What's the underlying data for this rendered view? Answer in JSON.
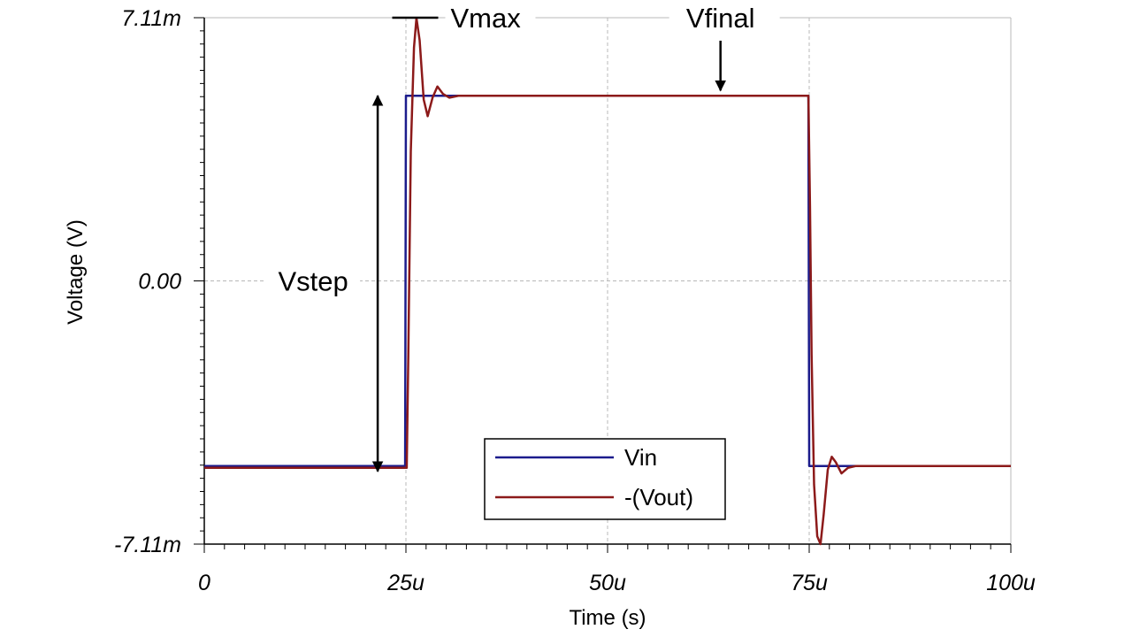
{
  "chart_data": {
    "type": "line",
    "xlabel": "Time (s)",
    "ylabel": "Voltage (V)",
    "xlim": [
      0,
      100
    ],
    "ylim": [
      -7.11,
      7.11
    ],
    "x_unit_note": "microseconds",
    "y_unit_note": "millivolts",
    "grid": true,
    "legend_position": "bottom-center",
    "x_ticks": [
      {
        "value": 0,
        "label": "0"
      },
      {
        "value": 25,
        "label": "25u"
      },
      {
        "value": 50,
        "label": "50u"
      },
      {
        "value": 75,
        "label": "75u"
      },
      {
        "value": 100,
        "label": "100u"
      }
    ],
    "y_ticks": [
      {
        "value": 7.11,
        "label": "7.11m"
      },
      {
        "value": 0,
        "label": "0.00"
      },
      {
        "value": -7.11,
        "label": "-7.11m"
      }
    ],
    "series": [
      {
        "name": "Vin",
        "color": "#1c1c8c",
        "points": [
          [
            0,
            -5.0
          ],
          [
            24.9,
            -5.0
          ],
          [
            25.0,
            5.0
          ],
          [
            74.9,
            5.0
          ],
          [
            75.0,
            -5.0
          ],
          [
            100,
            -5.0
          ]
        ]
      },
      {
        "name": "-(Vout)",
        "color": "#8c1a1a",
        "points": [
          [
            0,
            -5.05
          ],
          [
            25.1,
            -5.05
          ],
          [
            25.3,
            -2.0
          ],
          [
            25.6,
            3.5
          ],
          [
            26.0,
            6.3
          ],
          [
            26.3,
            7.1
          ],
          [
            26.7,
            6.5
          ],
          [
            27.2,
            4.9
          ],
          [
            27.7,
            4.45
          ],
          [
            28.3,
            4.95
          ],
          [
            28.9,
            5.25
          ],
          [
            29.6,
            5.05
          ],
          [
            30.4,
            4.95
          ],
          [
            31.5,
            5.0
          ],
          [
            74.9,
            5.0
          ],
          [
            75.1,
            2.0
          ],
          [
            75.3,
            -2.0
          ],
          [
            75.6,
            -5.5
          ],
          [
            76.0,
            -6.9
          ],
          [
            76.4,
            -7.11
          ],
          [
            76.8,
            -6.3
          ],
          [
            77.3,
            -5.1
          ],
          [
            77.8,
            -4.75
          ],
          [
            78.3,
            -4.9
          ],
          [
            79.0,
            -5.2
          ],
          [
            79.8,
            -5.05
          ],
          [
            80.8,
            -5.0
          ],
          [
            100,
            -5.0
          ]
        ]
      }
    ],
    "annotations": [
      {
        "text": "Vmax",
        "type": "hline-label",
        "y": 7.11,
        "x_from": 23.3,
        "x_to": 29.0
      },
      {
        "text": "Vfinal",
        "type": "arrow-down",
        "x": 64.0,
        "y_from": 7.11,
        "y_to": 5.0
      },
      {
        "text": "Vstep",
        "type": "double-arrow",
        "x": 21.5,
        "y_from": 5.0,
        "y_to": -5.0
      }
    ]
  }
}
